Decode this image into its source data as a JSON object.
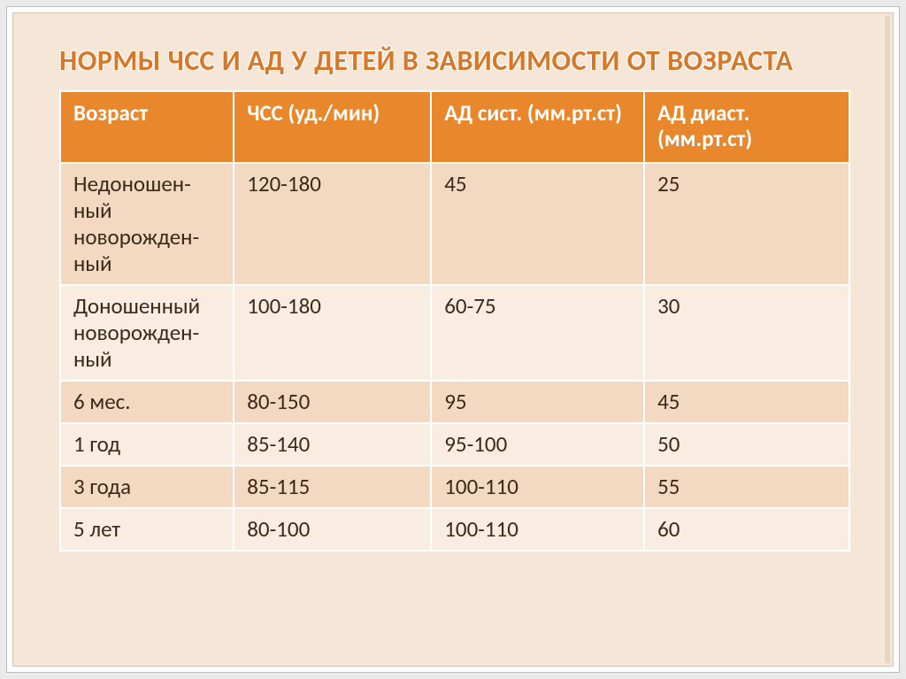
{
  "title": "НОРМЫ ЧСС И АД У ДЕТЕЙ В ЗАВИСИМОСТИ ОТ ВОЗРАСТА",
  "table": {
    "type": "table",
    "header_bg": "#e8872c",
    "header_fg": "#ffffff",
    "row_colors": [
      "#f3d9c2",
      "#f9ece0"
    ],
    "border_color": "#ffffff",
    "font_size_pt": 19,
    "columns": [
      {
        "label": "Возраст",
        "width_pct": 22
      },
      {
        "label": "ЧСС (уд./мин)",
        "width_pct": 25
      },
      {
        "label": "АД сист. (мм.рт.ст)",
        "width_pct": 27
      },
      {
        "label": "АД диаст. (мм.рт.ст)",
        "width_pct": 26
      }
    ],
    "rows": [
      [
        "Недоношен-ный новорожден-ный",
        "120-180",
        "45",
        "25"
      ],
      [
        "Доношенный новорожден-ный",
        "100-180",
        "60-75",
        "30"
      ],
      [
        "6 мес.",
        "80-150",
        "95",
        "45"
      ],
      [
        "1 год",
        "85-140",
        "95-100",
        "50"
      ],
      [
        "3 года",
        "85-115",
        "100-110",
        "55"
      ],
      [
        "5 лет",
        "80-100",
        "100-110",
        "60"
      ]
    ]
  },
  "slide": {
    "background_color": "#f6e6d7",
    "title_color": "#d6782a",
    "title_outline": "#ffffff",
    "title_fontsize_pt": 24
  }
}
